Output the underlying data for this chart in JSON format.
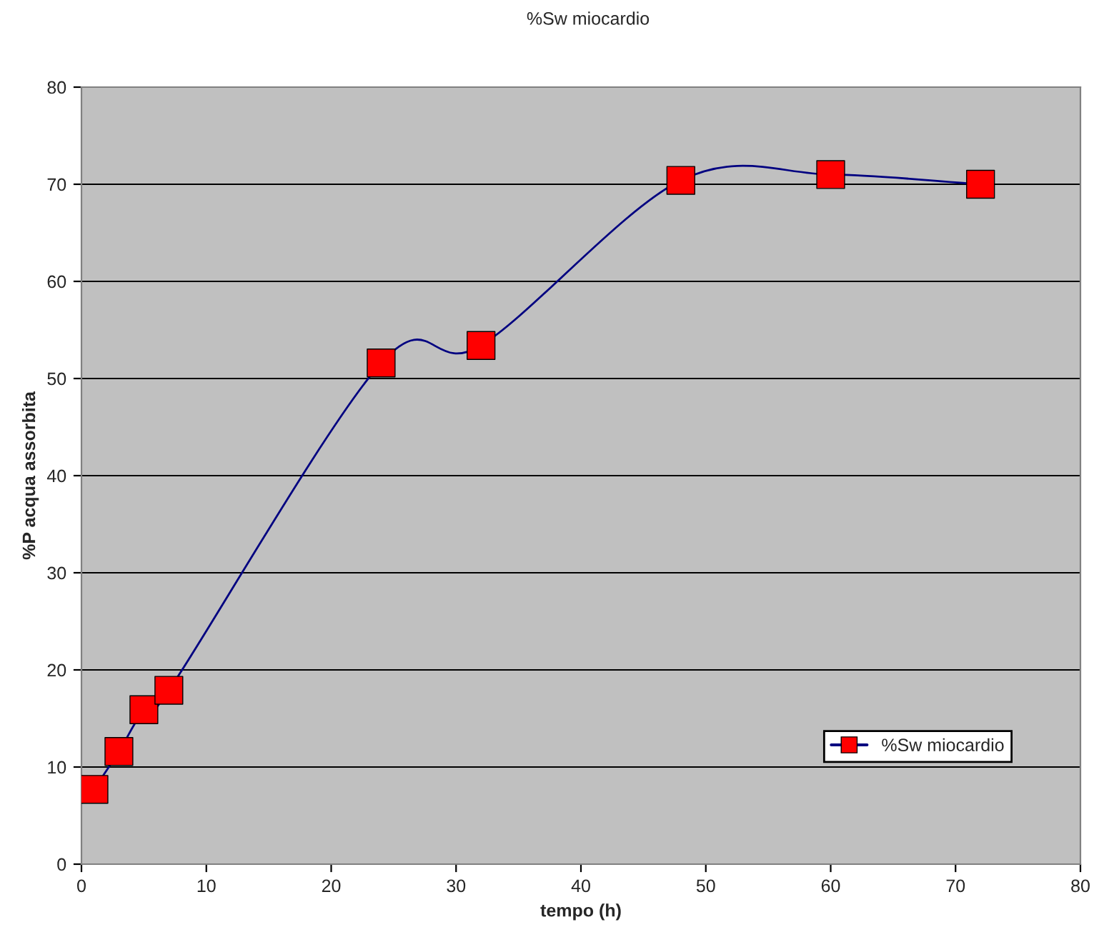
{
  "chart_data": {
    "type": "line",
    "title": "%Sw miocardio",
    "xlabel": "tempo (h)",
    "ylabel": "%P acqua assorbita",
    "x": [
      1,
      3,
      5,
      7,
      24,
      32,
      48,
      60,
      72
    ],
    "series": [
      {
        "name": "%Sw miocardio",
        "color": "#000080",
        "colors": [
          "#ff0000",
          "#ff0000",
          "#ff0000",
          "#ff0000",
          "#ff0000",
          "#ff0000",
          "#ff0000",
          "#ff0000",
          "#ff0000"
        ],
        "values": [
          7.7,
          11.6,
          15.9,
          17.9,
          51.6,
          53.4,
          70.4,
          71.0,
          70.0
        ]
      }
    ],
    "xlim": [
      0,
      80
    ],
    "xticks": [
      0,
      10,
      20,
      30,
      40,
      50,
      60,
      70,
      80
    ],
    "ylim": [
      0,
      80
    ],
    "yticks": [
      0,
      10,
      20,
      30,
      40,
      50,
      60,
      70,
      80
    ],
    "grid": "y",
    "legend": "bottom right",
    "marker": "square",
    "line_style": "solid"
  }
}
